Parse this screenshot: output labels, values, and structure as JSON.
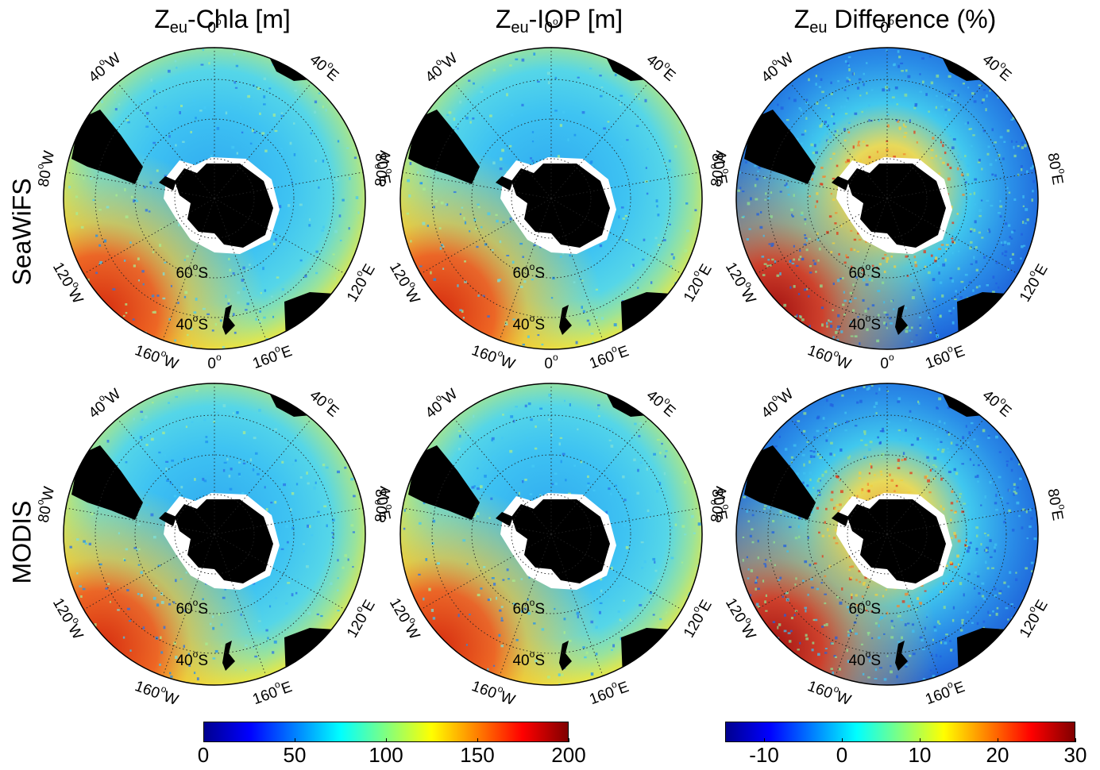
{
  "columns": [
    {
      "main": "Z",
      "sub": "eu",
      "rest": "-Chla [m]"
    },
    {
      "main": "Z",
      "sub": "eu",
      "rest": "-IOP [m]"
    },
    {
      "main": "Z",
      "sub": "eu",
      "rest": " Difference (%)"
    }
  ],
  "rows": [
    "SeaWiFS",
    "MODIS"
  ],
  "map_labels": {
    "lon_0": "0",
    "lon_40e": "40",
    "lon_80e": "80",
    "lon_120e": "120",
    "lon_160e": "160",
    "lon_40w": "40",
    "lon_80w": "80",
    "lon_120w": "120",
    "lon_160w": "160",
    "lat_60": "60",
    "lat_40": "40",
    "deg": "o",
    "east": "E",
    "west": "W",
    "south": "S"
  },
  "colorbars": [
    {
      "name": "zeu-depth",
      "ticks": [
        "0",
        "50",
        "100",
        "150",
        "200"
      ],
      "values": [
        0,
        50,
        100,
        150,
        200
      ],
      "min": 0,
      "max": 200
    },
    {
      "name": "zeu-difference",
      "ticks": [
        "-10",
        "0",
        "10",
        "20",
        "30"
      ],
      "values": [
        -10,
        0,
        10,
        20,
        30
      ],
      "min": -15,
      "max": 30
    }
  ],
  "colormap": [
    "#00008f",
    "#0000ff",
    "#0080ff",
    "#00ffff",
    "#80ff80",
    "#ffff00",
    "#ff8000",
    "#ff0000",
    "#800000"
  ],
  "colors": {
    "land": "#000000",
    "ice": "#ffffff",
    "ocean": "#3fc1f0"
  }
}
